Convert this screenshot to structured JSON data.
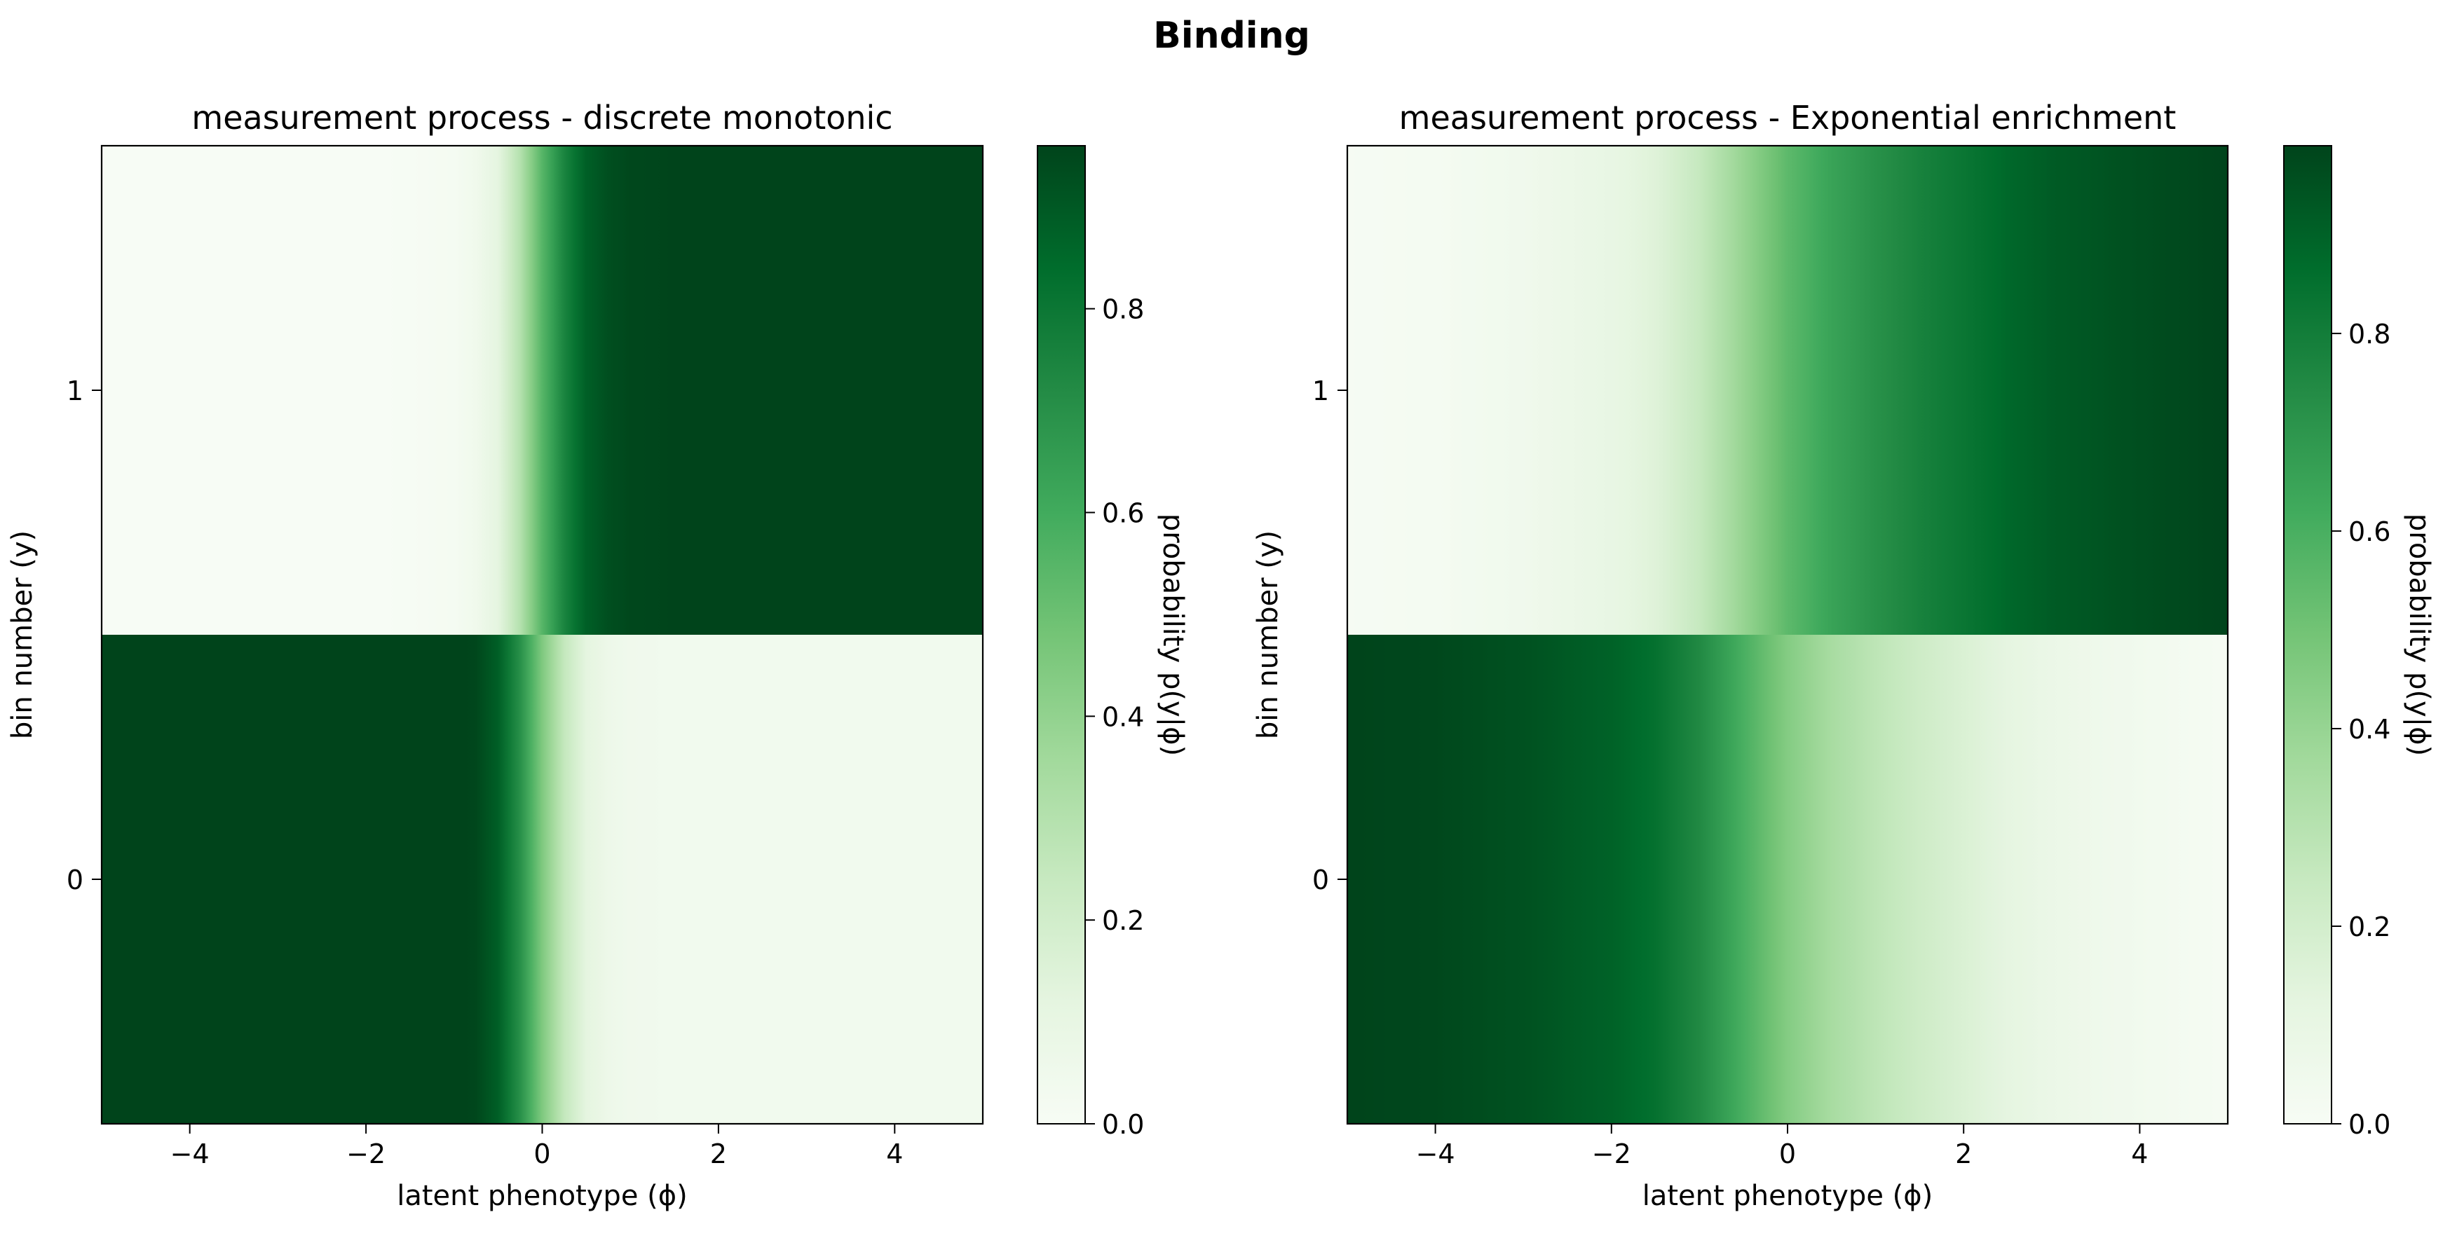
{
  "figure": {
    "title": "Binding"
  },
  "chart_data": [
    {
      "type": "heatmap",
      "title": "measurement process - discrete monotonic",
      "xlabel": "latent phenotype (ϕ)",
      "ylabel": "bin number (y)",
      "xlim": [
        -5,
        5
      ],
      "xticks": [
        "−4",
        "−2",
        "0",
        "2",
        "4"
      ],
      "xtick_values": [
        -4,
        -2,
        0,
        2,
        4
      ],
      "yticks": [
        "0",
        "1"
      ],
      "ytick_values": [
        0,
        1
      ],
      "bins": [
        0,
        1
      ],
      "profile": {
        "phi": [
          -5,
          -4,
          -3,
          -2,
          -1.5,
          -1,
          -0.75,
          -0.5,
          -0.25,
          0,
          0.25,
          0.5,
          0.75,
          1,
          1.5,
          2,
          3,
          4,
          5
        ],
        "p_bin1": [
          0,
          0,
          0,
          0,
          0.005,
          0.02,
          0.05,
          0.12,
          0.3,
          0.55,
          0.75,
          0.88,
          0.93,
          0.95,
          0.96,
          0.96,
          0.96,
          0.96,
          0.96
        ]
      },
      "colorbar": {
        "label": "probability  p(y|ϕ)",
        "ticks": [
          "0.0",
          "0.2",
          "0.4",
          "0.6",
          "0.8"
        ],
        "tick_values": [
          0,
          0.2,
          0.4,
          0.6,
          0.8
        ],
        "range": [
          0,
          0.96
        ]
      },
      "colormap": "Greens",
      "colormap_stops": [
        "#f7fcf5",
        "#e5f5e0",
        "#c7e9c0",
        "#a1d99b",
        "#74c476",
        "#41ab5d",
        "#238b45",
        "#006d2c",
        "#00441b"
      ]
    },
    {
      "type": "heatmap",
      "title": "measurement process - Exponential enrichment",
      "xlabel": "latent phenotype (ϕ)",
      "ylabel": "bin number (y)",
      "xlim": [
        -5,
        5
      ],
      "xticks": [
        "−4",
        "−2",
        "0",
        "2",
        "4"
      ],
      "xtick_values": [
        -4,
        -2,
        0,
        2,
        4
      ],
      "yticks": [
        "0",
        "1"
      ],
      "ytick_values": [
        0,
        1
      ],
      "bins": [
        0,
        1
      ],
      "profile": {
        "phi": [
          -5,
          -4,
          -3,
          -2,
          -1.5,
          -1,
          -0.5,
          0,
          0.5,
          1,
          1.5,
          2,
          2.5,
          3,
          4,
          5
        ],
        "p_bin1": [
          0.01,
          0.02,
          0.05,
          0.1,
          0.15,
          0.25,
          0.4,
          0.55,
          0.65,
          0.72,
          0.78,
          0.83,
          0.88,
          0.92,
          0.96,
          0.99
        ]
      },
      "colorbar": {
        "label": "probability  p(y|ϕ)",
        "ticks": [
          "0.0",
          "0.2",
          "0.4",
          "0.6",
          "0.8"
        ],
        "tick_values": [
          0,
          0.2,
          0.4,
          0.6,
          0.8
        ],
        "range": [
          0,
          0.99
        ]
      },
      "colormap": "Greens",
      "colormap_stops": [
        "#f7fcf5",
        "#e5f5e0",
        "#c7e9c0",
        "#a1d99b",
        "#74c476",
        "#41ab5d",
        "#238b45",
        "#006d2c",
        "#00441b"
      ]
    }
  ]
}
